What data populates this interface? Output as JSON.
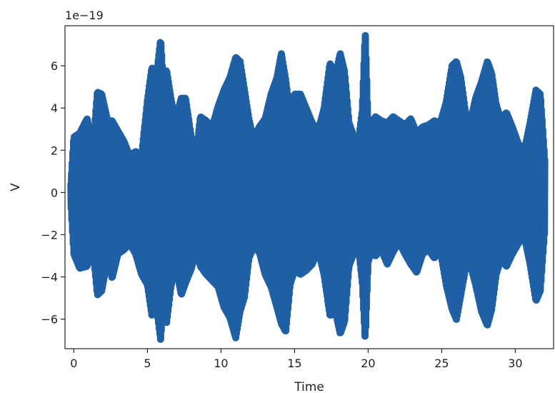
{
  "chart_data": {
    "type": "line",
    "title": "",
    "xlabel": "Time",
    "ylabel": "V",
    "y_offset_text": "1e−19",
    "xlim": [
      -0.6,
      32.6
    ],
    "ylim": [
      -7.4,
      7.9
    ],
    "x_ticks": [
      0,
      5,
      10,
      15,
      20,
      25,
      30
    ],
    "y_ticks": [
      -6,
      -4,
      -2,
      0,
      2,
      4,
      6
    ],
    "x_tick_labels": [
      "0",
      "5",
      "10",
      "15",
      "20",
      "25",
      "30"
    ],
    "y_tick_labels": [
      "−6",
      "−4",
      "−2",
      "0",
      "2",
      "4",
      "6"
    ],
    "grid": false,
    "series": [
      {
        "color": "#1f5fa6",
        "envelope": {
          "x": [
            -0.2,
            0.0,
            0.4,
            0.9,
            1.3,
            1.6,
            1.9,
            2.3,
            2.6,
            3.0,
            3.4,
            3.8,
            4.2,
            4.6,
            5.0,
            5.3,
            5.6,
            5.9,
            6.1,
            6.3,
            6.6,
            6.9,
            7.3,
            7.6,
            8.0,
            8.3,
            8.6,
            9.0,
            9.4,
            9.8,
            10.2,
            10.6,
            11.0,
            11.3,
            11.6,
            11.9,
            12.2,
            12.6,
            13.0,
            13.4,
            13.8,
            14.1,
            14.4,
            14.7,
            15.0,
            15.4,
            15.8,
            16.2,
            16.6,
            17.0,
            17.4,
            17.8,
            18.1,
            18.4,
            18.7,
            19.0,
            19.3,
            19.6,
            19.8,
            20.0,
            20.2,
            20.5,
            20.9,
            21.3,
            21.7,
            22.1,
            22.5,
            22.9,
            23.3,
            23.7,
            24.1,
            24.5,
            24.9,
            25.3,
            25.7,
            26.0,
            26.3,
            26.6,
            26.9,
            27.3,
            27.7,
            28.1,
            28.4,
            28.7,
            29.0,
            29.4,
            29.8,
            30.2,
            30.6,
            31.0,
            31.4,
            31.7,
            32.0
          ],
          "upper": [
            0.4,
            2.7,
            2.9,
            3.6,
            2.2,
            4.9,
            4.8,
            3.5,
            3.5,
            3.0,
            2.5,
            1.8,
            2.0,
            1.8,
            4.5,
            6.1,
            5.6,
            7.5,
            5.1,
            6.0,
            4.6,
            3.5,
            4.6,
            4.6,
            2.6,
            1.8,
            3.7,
            3.5,
            3.2,
            4.2,
            5.0,
            5.6,
            6.6,
            6.4,
            5.0,
            3.6,
            2.6,
            3.2,
            3.6,
            4.8,
            5.6,
            6.8,
            5.5,
            3.8,
            4.8,
            4.8,
            4.1,
            3.4,
            3.0,
            4.1,
            6.3,
            5.8,
            6.8,
            5.9,
            3.4,
            2.8,
            2.3,
            4.0,
            7.9,
            3.2,
            3.4,
            3.7,
            3.5,
            3.4,
            3.7,
            3.5,
            3.3,
            3.6,
            2.9,
            3.2,
            3.3,
            3.5,
            3.4,
            4.4,
            6.2,
            6.4,
            5.6,
            4.0,
            3.3,
            4.6,
            5.4,
            6.4,
            5.8,
            4.3,
            3.6,
            3.9,
            3.2,
            2.4,
            2.0,
            3.4,
            5.0,
            4.8,
            1.6
          ],
          "lower": [
            -0.5,
            -3.0,
            -3.7,
            -3.6,
            -2.8,
            -5.0,
            -4.8,
            -3.2,
            -4.2,
            -3.0,
            -2.8,
            -2.5,
            -3.0,
            -4.0,
            -4.5,
            -6.0,
            -5.5,
            -7.2,
            -5.0,
            -6.4,
            -4.6,
            -3.5,
            -5.0,
            -4.4,
            -3.7,
            -2.8,
            -3.6,
            -4.0,
            -4.3,
            -4.6,
            -5.6,
            -6.1,
            -7.1,
            -5.8,
            -5.1,
            -3.2,
            -2.7,
            -2.9,
            -4.0,
            -4.6,
            -5.6,
            -6.4,
            -6.8,
            -4.5,
            -3.8,
            -4.0,
            -3.8,
            -3.5,
            -2.8,
            -4.0,
            -6.0,
            -5.9,
            -6.9,
            -6.3,
            -3.6,
            -3.0,
            -2.4,
            -4.4,
            -7.2,
            -3.4,
            -2.9,
            -3.1,
            -2.8,
            -3.5,
            -2.9,
            -2.4,
            -3.0,
            -3.5,
            -3.9,
            -3.0,
            -2.8,
            -3.2,
            -2.8,
            -4.5,
            -5.7,
            -6.2,
            -5.0,
            -3.8,
            -3.4,
            -4.5,
            -5.8,
            -6.5,
            -5.7,
            -4.0,
            -3.3,
            -3.6,
            -3.0,
            -2.5,
            -2.1,
            -3.5,
            -5.3,
            -4.8,
            -1.8
          ]
        }
      }
    ]
  }
}
